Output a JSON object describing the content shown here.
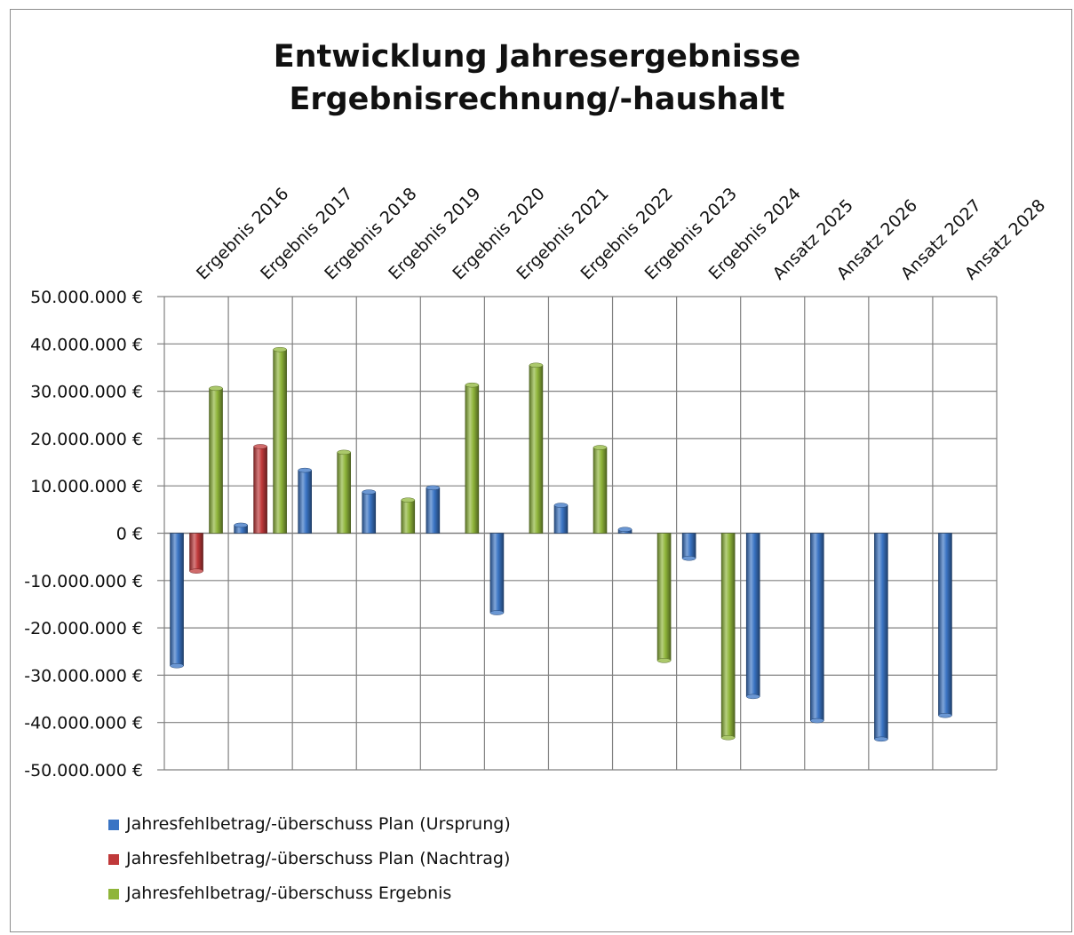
{
  "title": {
    "line1": "Entwicklung Jahresergebnisse",
    "line2": "Ergebnisrechnung/-haushalt"
  },
  "chart_data": {
    "type": "bar",
    "title": "Entwicklung Jahresergebnisse Ergebnisrechnung/-haushalt",
    "xlabel": "",
    "ylabel": "",
    "x_axis_position": "top",
    "ylim": [
      -50000000,
      50000000
    ],
    "yticks": [
      50000000,
      40000000,
      30000000,
      20000000,
      10000000,
      0,
      -10000000,
      -20000000,
      -30000000,
      -40000000,
      -50000000
    ],
    "ytick_labels": [
      "50.000.000 €",
      "40.000.000 €",
      "30.000.000 €",
      "20.000.000 €",
      "10.000.000 €",
      "0 €",
      "-10.000.000 €",
      "-20.000.000 €",
      "-30.000.000 €",
      "-40.000.000 €",
      "-50.000.000 €"
    ],
    "grid": true,
    "legend_position": "bottom-left",
    "categories": [
      "Ergebnis 2016",
      "Ergebnis 2017",
      "Ergebnis 2018",
      "Ergebnis 2019",
      "Ergebnis 2020",
      "Ergebnis 2021",
      "Ergebnis 2022",
      "Ergebnis 2023",
      "Ergebnis 2024",
      "Ansatz 2025",
      "Ansatz 2026",
      "Ansatz 2027",
      "Ansatz 2028"
    ],
    "series": [
      {
        "name": "Jahresfehlbetrag/-überschuss Plan (Ursprung)",
        "color": "#3a74c4",
        "values": [
          -28000000,
          1700000,
          13300000,
          8700000,
          9600000,
          -16800000,
          5900000,
          800000,
          -5300000,
          -34500000,
          -39600000,
          -43500000,
          -38500000
        ]
      },
      {
        "name": "Jahresfehlbetrag/-überschuss Plan (Nachtrag)",
        "color": "#c0393a",
        "values": [
          -8000000,
          18300000,
          null,
          null,
          null,
          null,
          null,
          null,
          null,
          null,
          null,
          null,
          null
        ]
      },
      {
        "name": "Jahresfehlbetrag/-überschuss Ergebnis",
        "color": "#8fb53a",
        "values": [
          30600000,
          38800000,
          17100000,
          7000000,
          31300000,
          35500000,
          18100000,
          -26900000,
          -43200000,
          null,
          null,
          null,
          null
        ]
      }
    ]
  }
}
